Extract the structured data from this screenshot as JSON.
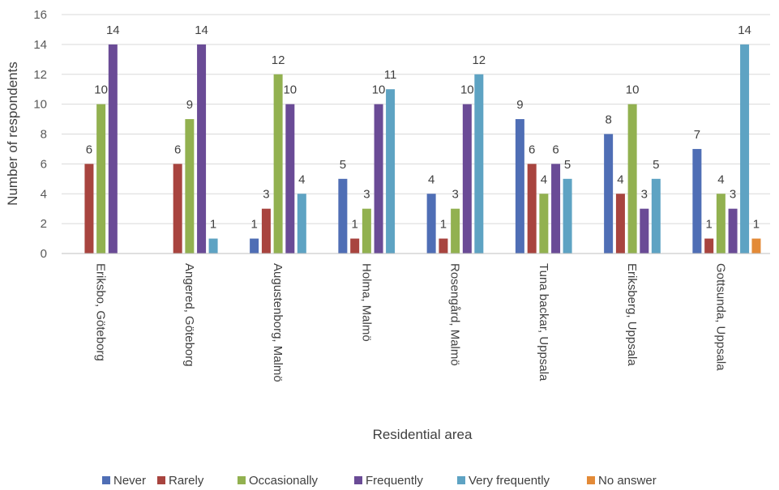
{
  "chart_data": {
    "type": "bar",
    "xlabel": "Residential area",
    "ylabel": "Number of respondents",
    "ylim": [
      0,
      16
    ],
    "yticks": [
      0,
      2,
      4,
      6,
      8,
      10,
      12,
      14,
      16
    ],
    "grid": true,
    "legend_position": "bottom",
    "categories": [
      "Eriksbo, Göteborg",
      "Angered, Göteborg",
      "Augustenborg, Malmö",
      "Holma, Malmö",
      "Rosengård, Malmö",
      "Tuna backar, Uppsala",
      "Eriksberg, Uppsala",
      "Gottsunda, Uppsala"
    ],
    "series": [
      {
        "name": "Never",
        "color": "#4f6eb5",
        "values": [
          null,
          null,
          1,
          5,
          4,
          9,
          8,
          7
        ]
      },
      {
        "name": "Rarely",
        "color": "#a8443f",
        "values": [
          6,
          6,
          3,
          1,
          1,
          6,
          4,
          1
        ]
      },
      {
        "name": "Occasionally",
        "color": "#92b150",
        "values": [
          10,
          9,
          12,
          3,
          3,
          4,
          10,
          4
        ]
      },
      {
        "name": "Frequently",
        "color": "#6a4b96",
        "values": [
          14,
          14,
          10,
          10,
          10,
          6,
          3,
          3
        ]
      },
      {
        "name": "Very frequently",
        "color": "#5ea3c3",
        "values": [
          null,
          1,
          4,
          11,
          12,
          5,
          5,
          14
        ]
      },
      {
        "name": "No answer",
        "color": "#e38a37",
        "values": [
          null,
          null,
          null,
          null,
          null,
          null,
          null,
          1
        ]
      }
    ]
  }
}
